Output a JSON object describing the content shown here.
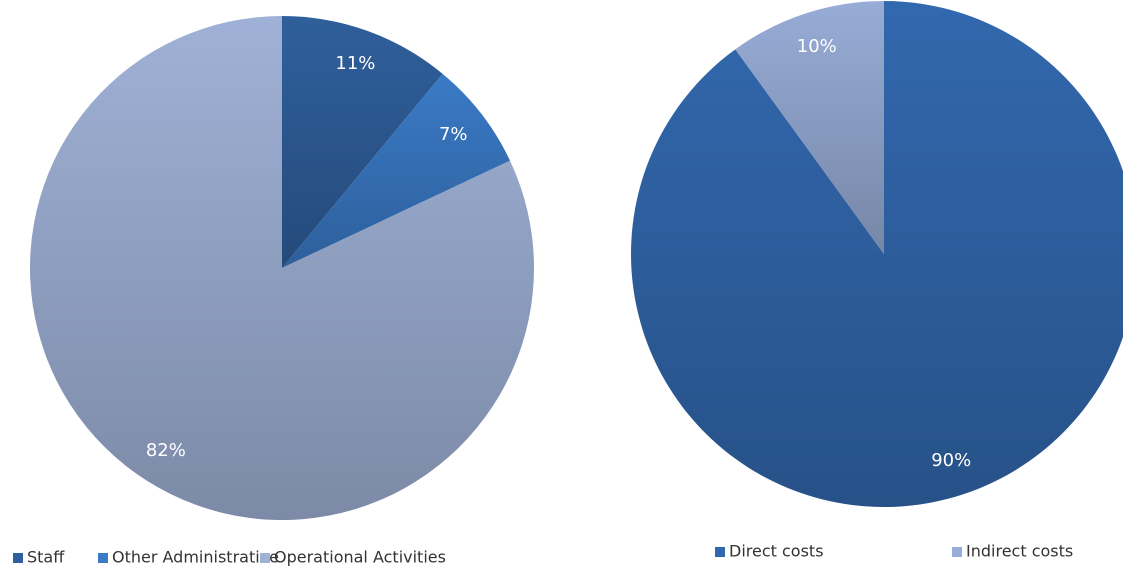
{
  "chart_data": [
    {
      "type": "pie",
      "categories": [
        "Staff",
        "Other Administrative",
        "Operational Activities"
      ],
      "values": [
        11,
        7,
        82
      ],
      "value_labels": [
        "11%",
        "7%",
        "82%"
      ],
      "colors": [
        "#2f5f9c",
        "#3a7ac6",
        "#9fb1d6"
      ],
      "legend": "bottom"
    },
    {
      "type": "pie",
      "categories": [
        "Direct costs",
        "Indirect costs"
      ],
      "values": [
        90,
        10
      ],
      "value_labels": [
        "90%",
        "10%"
      ],
      "colors": [
        "#3268ae",
        "#97acd6"
      ],
      "legend": "bottom"
    }
  ]
}
